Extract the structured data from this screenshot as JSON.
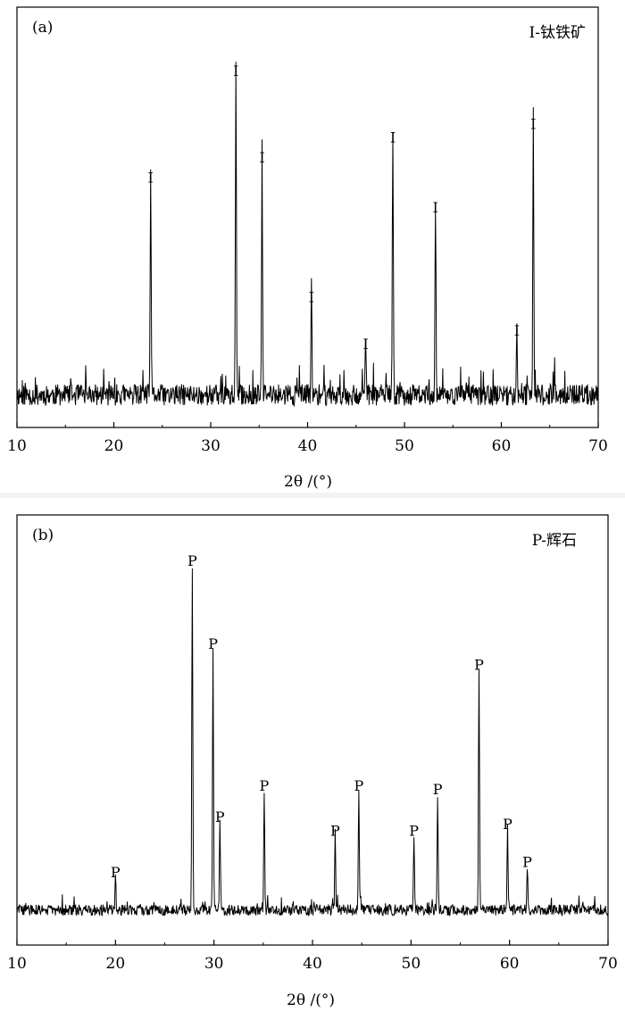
{
  "chart_data": [
    {
      "type": "line",
      "panel_label": "(a)",
      "legend": "I-钛铁矿",
      "xlabel": "2θ /(°)",
      "xlim": [
        10,
        70
      ],
      "xticks": [
        10,
        20,
        30,
        40,
        50,
        60,
        70
      ],
      "ylim": [
        0,
        100
      ],
      "grid": false,
      "baseline": {
        "level": 5,
        "noise": 4
      },
      "peaks": [
        {
          "x": 23.8,
          "y": 68,
          "label": "I"
        },
        {
          "x": 32.6,
          "y": 100,
          "label": "I"
        },
        {
          "x": 35.3,
          "y": 74,
          "label": "I"
        },
        {
          "x": 40.4,
          "y": 32,
          "label": "I"
        },
        {
          "x": 46.0,
          "y": 18,
          "label": "I"
        },
        {
          "x": 48.8,
          "y": 80,
          "label": "I"
        },
        {
          "x": 53.2,
          "y": 59,
          "label": "I"
        },
        {
          "x": 61.6,
          "y": 22,
          "label": "I"
        },
        {
          "x": 63.3,
          "y": 84,
          "label": "I"
        }
      ]
    },
    {
      "type": "line",
      "panel_label": "(b)",
      "legend": "P-辉石",
      "xlabel": "2θ /(°)",
      "xlim": [
        10,
        70
      ],
      "xticks": [
        10,
        20,
        30,
        40,
        50,
        60,
        70
      ],
      "ylim": [
        0,
        100
      ],
      "grid": false,
      "baseline": {
        "level": 2,
        "noise": 2
      },
      "peaks": [
        {
          "x": 20.0,
          "y": 10,
          "label": "P"
        },
        {
          "x": 27.8,
          "y": 100,
          "label": "P"
        },
        {
          "x": 29.9,
          "y": 76,
          "label": "P"
        },
        {
          "x": 30.6,
          "y": 26,
          "label": "P"
        },
        {
          "x": 35.1,
          "y": 35,
          "label": "P"
        },
        {
          "x": 42.3,
          "y": 22,
          "label": "P"
        },
        {
          "x": 44.7,
          "y": 35,
          "label": "P"
        },
        {
          "x": 50.3,
          "y": 22,
          "label": "P"
        },
        {
          "x": 52.7,
          "y": 34,
          "label": "P"
        },
        {
          "x": 56.9,
          "y": 70,
          "label": "P"
        },
        {
          "x": 59.8,
          "y": 24,
          "label": "P"
        },
        {
          "x": 61.8,
          "y": 13,
          "label": "P"
        }
      ]
    }
  ]
}
